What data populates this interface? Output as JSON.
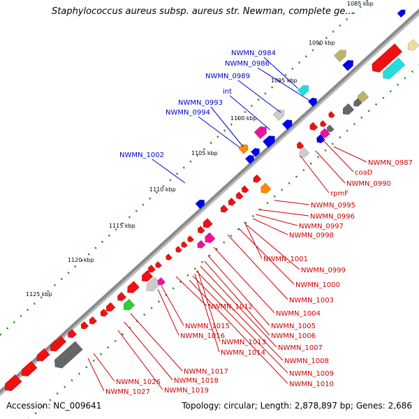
{
  "title": "Staphylococcus aureus subsp. aureus str. Newman, complete ge...",
  "footer": {
    "accession": "Accession: NC_009641",
    "stats": "Topology: circular; Length: 2,878,897 bp; Genes: 2,686"
  },
  "colors": {
    "backbone": "#8a8a8a",
    "forward_label": "#0000cc",
    "reverse_label": "#cc0000",
    "gc_dots": "#228b22"
  },
  "ticks": [
    "1085 kbp",
    "1090 kbp",
    "1095 kbp",
    "1100 kbp",
    "1105 kbp",
    "1110 kbp",
    "1115 kbp",
    "1120 kbp",
    "1125 kbp"
  ],
  "forward_labels": [
    "NWMN_0984",
    "NWMN_0986",
    "NWMN_0989",
    "int",
    "NWMN_0993",
    "NWMN_0994",
    "NWMN_1002"
  ],
  "reverse_labels": [
    "NWMN_0987",
    "coaD",
    "NWMN_0990",
    "rpmF",
    "NWMN_0995",
    "NWMN_0996",
    "NWMN_0997",
    "NWMN_0998",
    "NWMN_1001",
    "NWMN_0999",
    "NWMN_1000",
    "NWMN_1003",
    "NWMN_1004",
    "NWMN_1005",
    "NWMN_1006",
    "NWMN_1007",
    "NWMN_1008",
    "NWMN_1009",
    "NWMN_1010",
    "NWMN_1012",
    "NWMN_1015",
    "NWMN_1016",
    "NWMN_1013",
    "NWMN_1014",
    "NWMN_1017",
    "NWMN_1018",
    "NWMN_1019",
    "NWMN_1026",
    "NWMN_1027"
  ]
}
